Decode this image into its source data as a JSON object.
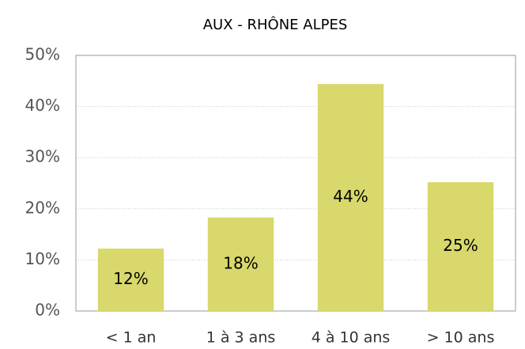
{
  "chart_data": {
    "type": "bar",
    "title": "AUX - RHÔNE ALPES",
    "categories": [
      "< 1 an",
      "1 à 3 ans",
      "4 à 10 ans",
      "> 10 ans"
    ],
    "values": [
      12.2,
      18.3,
      44.4,
      25.2
    ],
    "value_labels": [
      "12%",
      "18%",
      "44%",
      "25%"
    ],
    "color": "#d8d86c",
    "ylim": [
      0,
      50
    ],
    "yticks": [
      {
        "value": 0,
        "label": "0%"
      },
      {
        "value": 10,
        "label": "10%"
      },
      {
        "value": 20,
        "label": "20%"
      },
      {
        "value": 30,
        "label": "30%"
      },
      {
        "value": 40,
        "label": "40%"
      },
      {
        "value": 50,
        "label": "50%"
      }
    ],
    "grid": true
  }
}
